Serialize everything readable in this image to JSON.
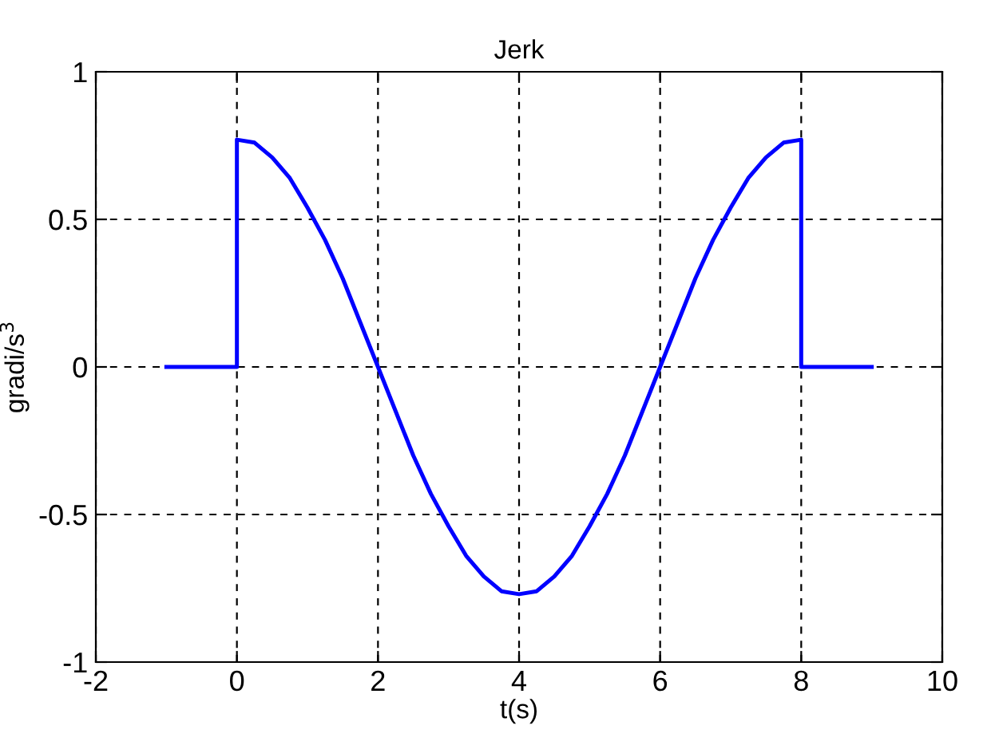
{
  "chart_data": {
    "type": "line",
    "title": "Jerk",
    "xlabel": "t(s)",
    "ylabel": "gradi/s$^{3}$",
    "xlim": [
      -2,
      10
    ],
    "xticks": [
      -2,
      0,
      2,
      4,
      6,
      8,
      10
    ],
    "ylim": [
      -1,
      1
    ],
    "yticks": [
      -1,
      -0.5,
      0,
      0.5,
      1
    ],
    "grid": true,
    "line_style": "solid",
    "marker": "none",
    "series": [
      {
        "color": "#0000ff",
        "x": [
          -1,
          0,
          0,
          0.25,
          0.5,
          0.75,
          1,
          1.25,
          1.5,
          1.75,
          2,
          2.25,
          2.5,
          2.75,
          3,
          3.25,
          3.5,
          3.75,
          4,
          4.25,
          4.5,
          4.75,
          5,
          5.25,
          5.5,
          5.75,
          6,
          6.25,
          6.5,
          6.75,
          7,
          7.25,
          7.5,
          7.75,
          8,
          8,
          9
        ],
        "values": [
          0,
          0,
          0.77,
          0.76,
          0.71,
          0.64,
          0.54,
          0.43,
          0.3,
          0.15,
          0,
          -0.15,
          -0.3,
          -0.43,
          -0.54,
          -0.64,
          -0.71,
          -0.76,
          -0.77,
          -0.76,
          -0.71,
          -0.64,
          -0.54,
          -0.43,
          -0.3,
          -0.15,
          0,
          0.15,
          0.3,
          0.43,
          0.54,
          0.64,
          0.71,
          0.76,
          0.77,
          0,
          0
        ]
      }
    ]
  }
}
